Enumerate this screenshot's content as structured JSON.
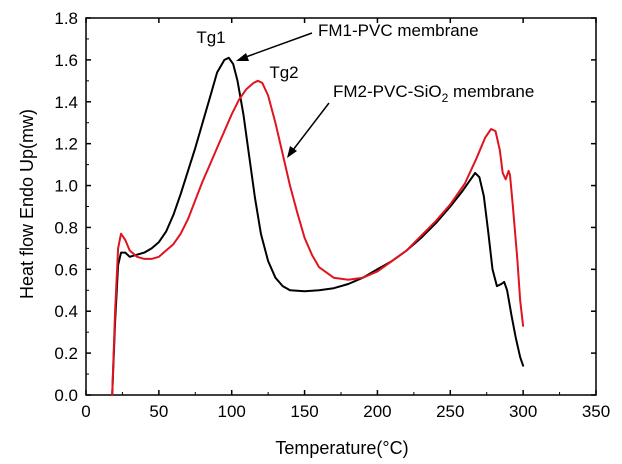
{
  "chart_data": {
    "type": "line",
    "xlabel": "Temperature(°C)",
    "ylabel": "Heat flow Endo Up(mw)",
    "xlim": [
      0,
      350
    ],
    "ylim": [
      0.0,
      1.8
    ],
    "xticks": [
      0,
      50,
      100,
      150,
      200,
      250,
      300,
      350
    ],
    "yticks": [
      "0.0",
      "0.2",
      "0.4",
      "0.6",
      "0.8",
      "1.0",
      "1.2",
      "1.4",
      "1.6",
      "1.8"
    ],
    "grid": false,
    "legend": "none",
    "series": [
      {
        "name": "FM1-PVC membrane",
        "color": "#000000",
        "points": [
          [
            18,
            0.0
          ],
          [
            20,
            0.35
          ],
          [
            22,
            0.62
          ],
          [
            24,
            0.68
          ],
          [
            27,
            0.68
          ],
          [
            30,
            0.66
          ],
          [
            35,
            0.67
          ],
          [
            40,
            0.68
          ],
          [
            45,
            0.7
          ],
          [
            50,
            0.73
          ],
          [
            55,
            0.78
          ],
          [
            60,
            0.86
          ],
          [
            65,
            0.96
          ],
          [
            70,
            1.07
          ],
          [
            75,
            1.18
          ],
          [
            80,
            1.3
          ],
          [
            85,
            1.42
          ],
          [
            90,
            1.54
          ],
          [
            95,
            1.6
          ],
          [
            98,
            1.61
          ],
          [
            101,
            1.58
          ],
          [
            104,
            1.5
          ],
          [
            108,
            1.34
          ],
          [
            112,
            1.14
          ],
          [
            116,
            0.94
          ],
          [
            120,
            0.77
          ],
          [
            125,
            0.64
          ],
          [
            130,
            0.56
          ],
          [
            135,
            0.52
          ],
          [
            140,
            0.5
          ],
          [
            150,
            0.495
          ],
          [
            160,
            0.5
          ],
          [
            170,
            0.51
          ],
          [
            180,
            0.53
          ],
          [
            190,
            0.56
          ],
          [
            200,
            0.6
          ],
          [
            210,
            0.64
          ],
          [
            220,
            0.69
          ],
          [
            230,
            0.75
          ],
          [
            240,
            0.82
          ],
          [
            250,
            0.9
          ],
          [
            258,
            0.97
          ],
          [
            263,
            1.02
          ],
          [
            267,
            1.06
          ],
          [
            270,
            1.04
          ],
          [
            273,
            0.95
          ],
          [
            276,
            0.78
          ],
          [
            279,
            0.6
          ],
          [
            282,
            0.52
          ],
          [
            285,
            0.53
          ],
          [
            287,
            0.54
          ],
          [
            289,
            0.5
          ],
          [
            292,
            0.38
          ],
          [
            295,
            0.27
          ],
          [
            298,
            0.18
          ],
          [
            300,
            0.14
          ]
        ]
      },
      {
        "name": "FM2-PVC-SiO2 membrane",
        "color": "#e0141e",
        "points": [
          [
            18,
            0.0
          ],
          [
            20,
            0.4
          ],
          [
            22,
            0.7
          ],
          [
            24,
            0.77
          ],
          [
            27,
            0.74
          ],
          [
            30,
            0.69
          ],
          [
            35,
            0.66
          ],
          [
            40,
            0.65
          ],
          [
            45,
            0.65
          ],
          [
            50,
            0.66
          ],
          [
            55,
            0.69
          ],
          [
            60,
            0.72
          ],
          [
            65,
            0.77
          ],
          [
            70,
            0.84
          ],
          [
            75,
            0.93
          ],
          [
            80,
            1.02
          ],
          [
            85,
            1.1
          ],
          [
            90,
            1.18
          ],
          [
            95,
            1.26
          ],
          [
            100,
            1.34
          ],
          [
            105,
            1.41
          ],
          [
            110,
            1.46
          ],
          [
            115,
            1.49
          ],
          [
            118,
            1.5
          ],
          [
            121,
            1.49
          ],
          [
            125,
            1.43
          ],
          [
            130,
            1.3
          ],
          [
            135,
            1.15
          ],
          [
            140,
            1.0
          ],
          [
            145,
            0.87
          ],
          [
            150,
            0.75
          ],
          [
            155,
            0.67
          ],
          [
            160,
            0.61
          ],
          [
            170,
            0.56
          ],
          [
            180,
            0.55
          ],
          [
            190,
            0.56
          ],
          [
            200,
            0.59
          ],
          [
            210,
            0.64
          ],
          [
            220,
            0.69
          ],
          [
            230,
            0.76
          ],
          [
            240,
            0.83
          ],
          [
            250,
            0.91
          ],
          [
            260,
            1.01
          ],
          [
            268,
            1.13
          ],
          [
            274,
            1.23
          ],
          [
            278,
            1.27
          ],
          [
            281,
            1.26
          ],
          [
            284,
            1.17
          ],
          [
            286,
            1.06
          ],
          [
            288,
            1.03
          ],
          [
            290,
            1.07
          ],
          [
            291,
            1.05
          ],
          [
            293,
            0.9
          ],
          [
            296,
            0.65
          ],
          [
            298,
            0.45
          ],
          [
            300,
            0.33
          ]
        ]
      }
    ],
    "annotations": {
      "tg1": "Tg1",
      "tg2": "Tg2",
      "fm1": "FM1-PVC membrane",
      "fm2_prefix": "FM2-PVC-SiO",
      "fm2_sub": "2",
      "fm2_suffix": " membrane"
    }
  }
}
